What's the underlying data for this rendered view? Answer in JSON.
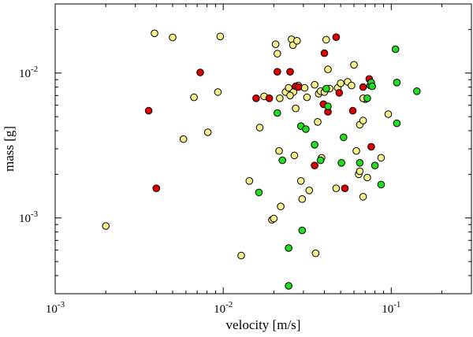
{
  "chart_data": {
    "type": "scatter",
    "title": "",
    "xlabel": "velocity [m/s]",
    "ylabel": "mass [g]",
    "xscale": "log",
    "yscale": "log",
    "xlim": [
      0.001,
      0.3
    ],
    "ylim": [
      0.0003,
      0.03
    ],
    "grid": false,
    "legend": "none",
    "x_ticks": [
      {
        "value": 0.001,
        "base": "10",
        "exp": "-3"
      },
      {
        "value": 0.01,
        "base": "10",
        "exp": "-2"
      },
      {
        "value": 0.1,
        "base": "10",
        "exp": "-1"
      }
    ],
    "y_ticks": [
      {
        "value": 0.001,
        "base": "10",
        "exp": "-3"
      },
      {
        "value": 0.01,
        "base": "10",
        "exp": "-2"
      }
    ],
    "colors": {
      "yellow": "#f5ef8c",
      "red": "#dd0000",
      "green": "#22dd22",
      "edge": "#000000"
    },
    "series": [
      {
        "name": "yellow",
        "color": "#f5ef8c",
        "points": [
          [
            0.002,
            0.00088
          ],
          [
            0.0039,
            0.0188
          ],
          [
            0.005,
            0.0176
          ],
          [
            0.0096,
            0.0179
          ],
          [
            0.0058,
            0.0035
          ],
          [
            0.0067,
            0.0068
          ],
          [
            0.0081,
            0.0039
          ],
          [
            0.0093,
            0.0074
          ],
          [
            0.0128,
            0.00055
          ],
          [
            0.0143,
            0.0018
          ],
          [
            0.0165,
            0.0042
          ],
          [
            0.0175,
            0.0069
          ],
          [
            0.0195,
            0.00097
          ],
          [
            0.02,
            0.00099
          ],
          [
            0.0205,
            0.0158
          ],
          [
            0.021,
            0.0136
          ],
          [
            0.0215,
            0.0029
          ],
          [
            0.0217,
            0.0067
          ],
          [
            0.022,
            0.0012
          ],
          [
            0.0235,
            0.0074
          ],
          [
            0.0245,
            0.0079
          ],
          [
            0.0255,
            0.0171
          ],
          [
            0.026,
            0.0156
          ],
          [
            0.0262,
            0.0074
          ],
          [
            0.0265,
            0.0027
          ],
          [
            0.027,
            0.0057
          ],
          [
            0.0275,
            0.0167
          ],
          [
            0.028,
            0.0082
          ],
          [
            0.029,
            0.0018
          ],
          [
            0.0295,
            0.00135
          ],
          [
            0.0305,
            0.0079
          ],
          [
            0.0315,
            0.0068
          ],
          [
            0.0325,
            0.00155
          ],
          [
            0.035,
            0.0083
          ],
          [
            0.0355,
            0.00057
          ],
          [
            0.0365,
            0.0046
          ],
          [
            0.037,
            0.0072
          ],
          [
            0.038,
            0.0075
          ],
          [
            0.0385,
            0.0026
          ],
          [
            0.04,
            0.0074
          ],
          [
            0.041,
            0.017
          ],
          [
            0.042,
            0.0106
          ],
          [
            0.043,
            0.0078
          ],
          [
            0.047,
            0.0016
          ],
          [
            0.048,
            0.0079
          ],
          [
            0.05,
            0.0085
          ],
          [
            0.055,
            0.0087
          ],
          [
            0.058,
            0.0082
          ],
          [
            0.06,
            0.0114
          ],
          [
            0.062,
            0.0029
          ],
          [
            0.064,
            0.002
          ],
          [
            0.065,
            0.0021
          ],
          [
            0.065,
            0.0044
          ],
          [
            0.068,
            0.0014
          ],
          [
            0.068,
            0.0047
          ],
          [
            0.07,
            0.0066
          ],
          [
            0.072,
            0.0019
          ],
          [
            0.087,
            0.0026
          ],
          [
            0.096,
            0.0052
          ],
          [
            0.068,
            0.0067
          ],
          [
            0.025,
            0.007
          ]
        ]
      },
      {
        "name": "red",
        "color": "#dd0000",
        "points": [
          [
            0.0036,
            0.0055
          ],
          [
            0.004,
            0.0016
          ],
          [
            0.0073,
            0.0101
          ],
          [
            0.0157,
            0.0067
          ],
          [
            0.0188,
            0.0067
          ],
          [
            0.021,
            0.0102
          ],
          [
            0.025,
            0.0102
          ],
          [
            0.027,
            0.0081
          ],
          [
            0.028,
            0.008
          ],
          [
            0.035,
            0.0023
          ],
          [
            0.0395,
            0.0061
          ],
          [
            0.04,
            0.0137
          ],
          [
            0.042,
            0.0054
          ],
          [
            0.047,
            0.0177
          ],
          [
            0.049,
            0.0073
          ],
          [
            0.053,
            0.0016
          ],
          [
            0.059,
            0.0055
          ],
          [
            0.068,
            0.008
          ],
          [
            0.074,
            0.0091
          ],
          [
            0.076,
            0.0031
          ]
        ]
      },
      {
        "name": "green",
        "color": "#22dd22",
        "points": [
          [
            0.0163,
            0.0015
          ],
          [
            0.021,
            0.0053
          ],
          [
            0.0225,
            0.0025
          ],
          [
            0.0245,
            0.00034
          ],
          [
            0.0245,
            0.00062
          ],
          [
            0.029,
            0.0043
          ],
          [
            0.0295,
            0.00082
          ],
          [
            0.031,
            0.0041
          ],
          [
            0.035,
            0.0032
          ],
          [
            0.041,
            0.0078
          ],
          [
            0.042,
            0.0059
          ],
          [
            0.0505,
            0.0024
          ],
          [
            0.052,
            0.0036
          ],
          [
            0.065,
            0.0024
          ],
          [
            0.072,
            0.0067
          ],
          [
            0.075,
            0.0082
          ],
          [
            0.076,
            0.0086
          ],
          [
            0.077,
            0.0081
          ],
          [
            0.08,
            0.0023
          ],
          [
            0.087,
            0.0017
          ],
          [
            0.106,
            0.0146
          ],
          [
            0.108,
            0.0086
          ],
          [
            0.108,
            0.0045
          ],
          [
            0.142,
            0.0075
          ],
          [
            0.038,
            0.0025
          ]
        ]
      }
    ]
  }
}
